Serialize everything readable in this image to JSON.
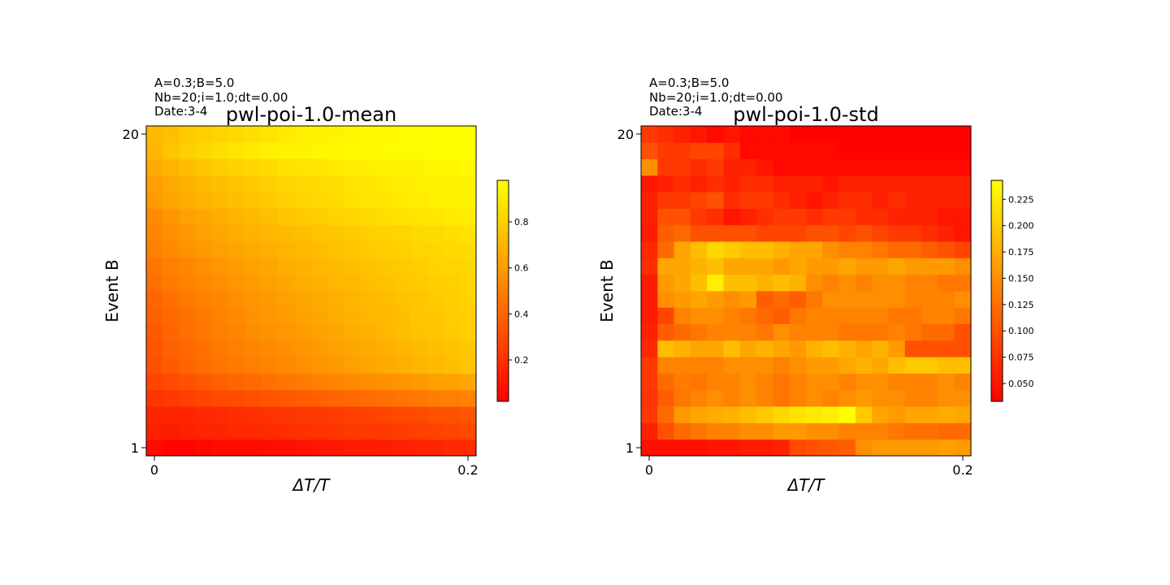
{
  "chart_data": [
    {
      "type": "heatmap",
      "annotation_lines": [
        "A=0.3;B=5.0",
        "Nb=20;i=1.0;dt=0.00",
        "Date:3-4"
      ],
      "title": "pwl-poi-1.0-mean",
      "xlabel": "ΔT/T",
      "ylabel": "Event B",
      "x_ticks": [
        {
          "value": 0,
          "label": "0"
        },
        {
          "value": 0.2,
          "label": "0.2"
        }
      ],
      "y_ticks": [
        {
          "value": 1,
          "label": "1"
        },
        {
          "value": 20,
          "label": "20"
        }
      ],
      "xlim": [
        0,
        0.2
      ],
      "ylim": [
        1,
        20
      ],
      "colormap": "autumn",
      "colormap_colors": [
        "#ff0000",
        "#ffff00"
      ],
      "colorbar": {
        "vmin": 0.02,
        "vmax": 0.98,
        "ticks": [
          0.2,
          0.4,
          0.6,
          0.8
        ],
        "tick_labels": [
          "0.2",
          "0.4",
          "0.6",
          "0.8"
        ]
      },
      "matrix_row_order": "row 1 = Event B 1 (bottom) ... row 20 = Event B 20 (top); 20 columns from ΔT/T 0 to 0.2",
      "matrix": [
        [
          0.06,
          0.04,
          0.04,
          0.05,
          0.06,
          0.06,
          0.06,
          0.07,
          0.08,
          0.09,
          0.1,
          0.11,
          0.12,
          0.12,
          0.13,
          0.14,
          0.15,
          0.16,
          0.17,
          0.18
        ],
        [
          0.14,
          0.13,
          0.14,
          0.15,
          0.16,
          0.17,
          0.17,
          0.18,
          0.19,
          0.2,
          0.21,
          0.22,
          0.23,
          0.24,
          0.24,
          0.25,
          0.26,
          0.27,
          0.28,
          0.29
        ],
        [
          0.16,
          0.15,
          0.16,
          0.17,
          0.18,
          0.19,
          0.2,
          0.21,
          0.22,
          0.23,
          0.24,
          0.25,
          0.26,
          0.27,
          0.28,
          0.29,
          0.3,
          0.32,
          0.33,
          0.34
        ],
        [
          0.22,
          0.24,
          0.26,
          0.28,
          0.3,
          0.31,
          0.32,
          0.34,
          0.35,
          0.37,
          0.38,
          0.4,
          0.41,
          0.43,
          0.44,
          0.46,
          0.47,
          0.49,
          0.5,
          0.51
        ],
        [
          0.28,
          0.3,
          0.33,
          0.36,
          0.38,
          0.4,
          0.42,
          0.44,
          0.46,
          0.48,
          0.5,
          0.52,
          0.54,
          0.55,
          0.57,
          0.58,
          0.6,
          0.62,
          0.63,
          0.65
        ],
        [
          0.32,
          0.36,
          0.4,
          0.43,
          0.46,
          0.48,
          0.5,
          0.52,
          0.54,
          0.56,
          0.58,
          0.6,
          0.62,
          0.64,
          0.66,
          0.68,
          0.7,
          0.72,
          0.74,
          0.76
        ],
        [
          0.34,
          0.38,
          0.41,
          0.44,
          0.47,
          0.5,
          0.52,
          0.54,
          0.56,
          0.58,
          0.6,
          0.62,
          0.64,
          0.66,
          0.68,
          0.7,
          0.72,
          0.74,
          0.75,
          0.77
        ],
        [
          0.36,
          0.4,
          0.44,
          0.47,
          0.5,
          0.52,
          0.55,
          0.57,
          0.59,
          0.61,
          0.63,
          0.65,
          0.67,
          0.69,
          0.71,
          0.73,
          0.75,
          0.76,
          0.78,
          0.8
        ],
        [
          0.38,
          0.42,
          0.45,
          0.48,
          0.51,
          0.54,
          0.57,
          0.59,
          0.61,
          0.63,
          0.65,
          0.67,
          0.69,
          0.71,
          0.72,
          0.74,
          0.76,
          0.77,
          0.79,
          0.8
        ],
        [
          0.4,
          0.44,
          0.47,
          0.5,
          0.53,
          0.56,
          0.58,
          0.6,
          0.62,
          0.64,
          0.66,
          0.68,
          0.7,
          0.72,
          0.73,
          0.75,
          0.76,
          0.78,
          0.79,
          0.81
        ],
        [
          0.44,
          0.48,
          0.51,
          0.54,
          0.56,
          0.59,
          0.61,
          0.63,
          0.65,
          0.67,
          0.69,
          0.71,
          0.72,
          0.74,
          0.75,
          0.77,
          0.78,
          0.79,
          0.8,
          0.82
        ],
        [
          0.46,
          0.5,
          0.53,
          0.56,
          0.59,
          0.61,
          0.63,
          0.65,
          0.67,
          0.69,
          0.71,
          0.72,
          0.74,
          0.75,
          0.77,
          0.78,
          0.79,
          0.81,
          0.82,
          0.83
        ],
        [
          0.5,
          0.54,
          0.57,
          0.6,
          0.62,
          0.64,
          0.66,
          0.68,
          0.7,
          0.72,
          0.73,
          0.75,
          0.76,
          0.78,
          0.79,
          0.8,
          0.82,
          0.83,
          0.84,
          0.85
        ],
        [
          0.52,
          0.56,
          0.59,
          0.62,
          0.65,
          0.67,
          0.69,
          0.71,
          0.72,
          0.74,
          0.76,
          0.77,
          0.78,
          0.8,
          0.81,
          0.82,
          0.84,
          0.85,
          0.86,
          0.87
        ],
        [
          0.54,
          0.58,
          0.62,
          0.65,
          0.67,
          0.7,
          0.72,
          0.74,
          0.76,
          0.78,
          0.79,
          0.81,
          0.83,
          0.84,
          0.86,
          0.87,
          0.88,
          0.89,
          0.9,
          0.91
        ],
        [
          0.6,
          0.64,
          0.67,
          0.7,
          0.72,
          0.74,
          0.76,
          0.78,
          0.8,
          0.82,
          0.84,
          0.85,
          0.87,
          0.88,
          0.89,
          0.9,
          0.91,
          0.92,
          0.93,
          0.94
        ],
        [
          0.62,
          0.66,
          0.69,
          0.72,
          0.74,
          0.76,
          0.78,
          0.8,
          0.82,
          0.84,
          0.85,
          0.86,
          0.88,
          0.89,
          0.9,
          0.91,
          0.92,
          0.93,
          0.94,
          0.94
        ],
        [
          0.66,
          0.7,
          0.74,
          0.77,
          0.79,
          0.81,
          0.83,
          0.85,
          0.87,
          0.88,
          0.89,
          0.9,
          0.91,
          0.92,
          0.93,
          0.94,
          0.94,
          0.95,
          0.95,
          0.96
        ],
        [
          0.7,
          0.76,
          0.8,
          0.83,
          0.86,
          0.88,
          0.9,
          0.92,
          0.93,
          0.94,
          0.95,
          0.95,
          0.96,
          0.96,
          0.97,
          0.97,
          0.97,
          0.98,
          0.98,
          0.98
        ],
        [
          0.72,
          0.74,
          0.78,
          0.8,
          0.82,
          0.84,
          0.86,
          0.88,
          0.9,
          0.92,
          0.93,
          0.94,
          0.95,
          0.96,
          0.96,
          0.97,
          0.97,
          0.98,
          0.98,
          0.98
        ]
      ]
    },
    {
      "type": "heatmap",
      "annotation_lines": [
        "A=0.3;B=5.0",
        "Nb=20;i=1.0;dt=0.00",
        "Date:3-4"
      ],
      "title": "pwl-poi-1.0-std",
      "xlabel": "ΔT/T",
      "ylabel": "Event B",
      "x_ticks": [
        {
          "value": 0,
          "label": "0"
        },
        {
          "value": 0.2,
          "label": "0.2"
        }
      ],
      "y_ticks": [
        {
          "value": 1,
          "label": "1"
        },
        {
          "value": 20,
          "label": "20"
        }
      ],
      "xlim": [
        0,
        0.2
      ],
      "ylim": [
        1,
        20
      ],
      "colormap": "autumn",
      "colormap_colors": [
        "#ff0000",
        "#ffff00"
      ],
      "colorbar": {
        "vmin": 0.033,
        "vmax": 0.243,
        "ticks": [
          0.05,
          0.075,
          0.1,
          0.125,
          0.15,
          0.175,
          0.2,
          0.225
        ],
        "tick_labels": [
          "0.050",
          "0.075",
          "0.100",
          "0.125",
          "0.150",
          "0.175",
          "0.200",
          "0.225"
        ]
      },
      "matrix_row_order": "row 1 = Event B 1 (bottom) ... row 20 = Event B 20 (top); 20 columns from ΔT/T 0 to 0.2",
      "matrix": [
        [
          0.045,
          0.045,
          0.045,
          0.045,
          0.05,
          0.05,
          0.055,
          0.055,
          0.06,
          0.095,
          0.1,
          0.105,
          0.11,
          0.15,
          0.16,
          0.16,
          0.16,
          0.16,
          0.165,
          0.16
        ],
        [
          0.06,
          0.1,
          0.12,
          0.13,
          0.14,
          0.14,
          0.15,
          0.15,
          0.16,
          0.16,
          0.15,
          0.15,
          0.14,
          0.14,
          0.14,
          0.13,
          0.125,
          0.125,
          0.12,
          0.12
        ],
        [
          0.08,
          0.12,
          0.16,
          0.17,
          0.175,
          0.18,
          0.19,
          0.2,
          0.21,
          0.22,
          0.225,
          0.23,
          0.245,
          0.2,
          0.17,
          0.16,
          0.17,
          0.17,
          0.175,
          0.17
        ],
        [
          0.075,
          0.11,
          0.13,
          0.14,
          0.15,
          0.14,
          0.15,
          0.14,
          0.13,
          0.14,
          0.15,
          0.14,
          0.15,
          0.16,
          0.15,
          0.15,
          0.14,
          0.14,
          0.15,
          0.15
        ],
        [
          0.08,
          0.12,
          0.135,
          0.13,
          0.14,
          0.14,
          0.15,
          0.14,
          0.13,
          0.14,
          0.15,
          0.15,
          0.14,
          0.15,
          0.15,
          0.14,
          0.14,
          0.14,
          0.15,
          0.14
        ],
        [
          0.08,
          0.14,
          0.14,
          0.14,
          0.14,
          0.15,
          0.15,
          0.15,
          0.14,
          0.15,
          0.16,
          0.16,
          0.17,
          0.18,
          0.17,
          0.19,
          0.2,
          0.2,
          0.19,
          0.19
        ],
        [
          0.065,
          0.19,
          0.18,
          0.17,
          0.17,
          0.19,
          0.17,
          0.18,
          0.17,
          0.16,
          0.18,
          0.19,
          0.18,
          0.17,
          0.18,
          0.16,
          0.1,
          0.1,
          0.1,
          0.1
        ],
        [
          0.06,
          0.11,
          0.12,
          0.13,
          0.14,
          0.14,
          0.14,
          0.13,
          0.15,
          0.14,
          0.14,
          0.14,
          0.13,
          0.13,
          0.13,
          0.14,
          0.13,
          0.12,
          0.12,
          0.1
        ],
        [
          0.055,
          0.09,
          0.14,
          0.15,
          0.15,
          0.14,
          0.13,
          0.12,
          0.11,
          0.13,
          0.14,
          0.14,
          0.14,
          0.14,
          0.14,
          0.13,
          0.13,
          0.14,
          0.14,
          0.13
        ],
        [
          0.055,
          0.15,
          0.16,
          0.17,
          0.16,
          0.15,
          0.16,
          0.11,
          0.12,
          0.11,
          0.13,
          0.15,
          0.15,
          0.15,
          0.15,
          0.15,
          0.14,
          0.14,
          0.14,
          0.15
        ],
        [
          0.055,
          0.16,
          0.17,
          0.19,
          0.23,
          0.19,
          0.19,
          0.18,
          0.19,
          0.18,
          0.15,
          0.14,
          0.15,
          0.14,
          0.15,
          0.15,
          0.14,
          0.14,
          0.13,
          0.13
        ],
        [
          0.07,
          0.17,
          0.17,
          0.18,
          0.19,
          0.17,
          0.17,
          0.17,
          0.16,
          0.17,
          0.16,
          0.16,
          0.17,
          0.16,
          0.16,
          0.17,
          0.16,
          0.16,
          0.16,
          0.15
        ],
        [
          0.065,
          0.12,
          0.17,
          0.19,
          0.21,
          0.2,
          0.19,
          0.19,
          0.18,
          0.17,
          0.17,
          0.15,
          0.14,
          0.14,
          0.13,
          0.12,
          0.12,
          0.11,
          0.1,
          0.09
        ],
        [
          0.055,
          0.11,
          0.12,
          0.1,
          0.1,
          0.1,
          0.1,
          0.09,
          0.09,
          0.09,
          0.1,
          0.1,
          0.09,
          0.1,
          0.09,
          0.08,
          0.08,
          0.07,
          0.06,
          0.05
        ],
        [
          0.06,
          0.1,
          0.1,
          0.08,
          0.07,
          0.05,
          0.06,
          0.07,
          0.08,
          0.08,
          0.07,
          0.08,
          0.08,
          0.07,
          0.07,
          0.06,
          0.06,
          0.06,
          0.05,
          0.05
        ],
        [
          0.06,
          0.08,
          0.08,
          0.09,
          0.1,
          0.07,
          0.08,
          0.08,
          0.07,
          0.06,
          0.05,
          0.06,
          0.07,
          0.07,
          0.06,
          0.07,
          0.06,
          0.06,
          0.06,
          0.06
        ],
        [
          0.05,
          0.06,
          0.07,
          0.06,
          0.07,
          0.06,
          0.07,
          0.07,
          0.06,
          0.06,
          0.06,
          0.05,
          0.06,
          0.06,
          0.06,
          0.06,
          0.06,
          0.06,
          0.06,
          0.06
        ],
        [
          0.15,
          0.08,
          0.08,
          0.07,
          0.08,
          0.06,
          0.06,
          0.05,
          0.04,
          0.04,
          0.04,
          0.04,
          0.04,
          0.04,
          0.04,
          0.04,
          0.04,
          0.04,
          0.04,
          0.04
        ],
        [
          0.1,
          0.08,
          0.08,
          0.09,
          0.09,
          0.07,
          0.04,
          0.04,
          0.04,
          0.04,
          0.04,
          0.04,
          0.035,
          0.035,
          0.035,
          0.035,
          0.035,
          0.035,
          0.035,
          0.035
        ],
        [
          0.08,
          0.07,
          0.06,
          0.05,
          0.04,
          0.05,
          0.04,
          0.04,
          0.04,
          0.035,
          0.035,
          0.035,
          0.035,
          0.035,
          0.035,
          0.035,
          0.035,
          0.035,
          0.035,
          0.035
        ]
      ]
    }
  ]
}
